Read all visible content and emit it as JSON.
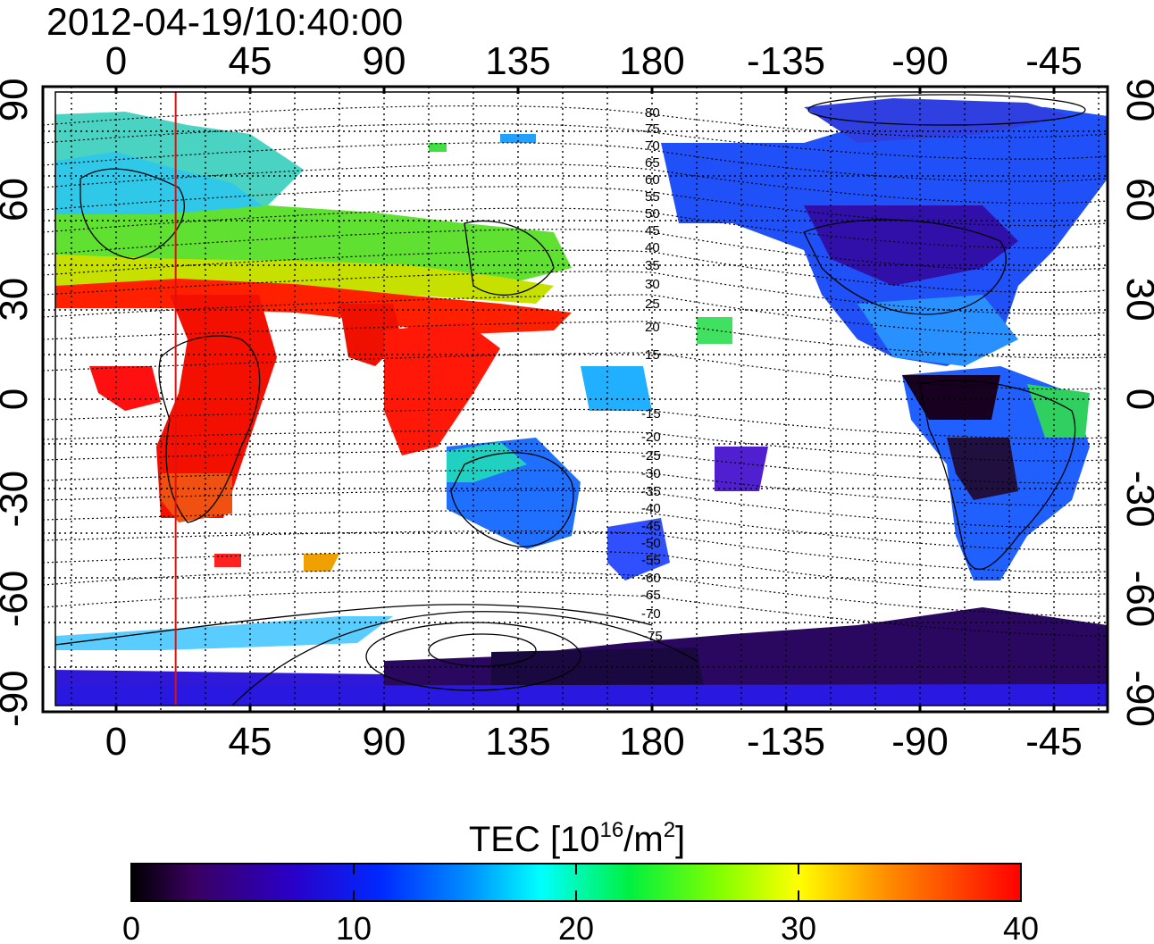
{
  "title": "2012-04-19/10:40:00",
  "map": {
    "lon_ticks": [
      0,
      45,
      90,
      135,
      180,
      -135,
      -90,
      -45
    ],
    "lat_ticks": [
      90,
      60,
      30,
      0,
      -30,
      -60,
      -90
    ],
    "magnetic_latitude_labels": [
      "80",
      "75",
      "70",
      "65",
      "60",
      "55",
      "50",
      "45",
      "40",
      "35",
      "30",
      "25",
      "20",
      "15",
      "-15",
      "-20",
      "-25",
      "-30",
      "-35",
      "-40",
      "-45",
      "-50",
      "-55",
      "-60",
      "-65",
      "-70",
      "-75"
    ],
    "marker_longitude": 20,
    "marker_color": "#e01010",
    "grid": true
  },
  "colorbar": {
    "label_main": "TEC  [10",
    "label_exp1": "16",
    "label_mid": "/m",
    "label_exp2": "2",
    "label_end": "]",
    "ticks": [
      0,
      10,
      20,
      30,
      40
    ],
    "min": 0,
    "max": 40,
    "colormap": [
      "#000000",
      "#3a0060",
      "#3000c0",
      "#0030ff",
      "#00a0ff",
      "#00ffff",
      "#00ff40",
      "#80ff00",
      "#ffff00",
      "#ff8000",
      "#ff0000"
    ]
  }
}
